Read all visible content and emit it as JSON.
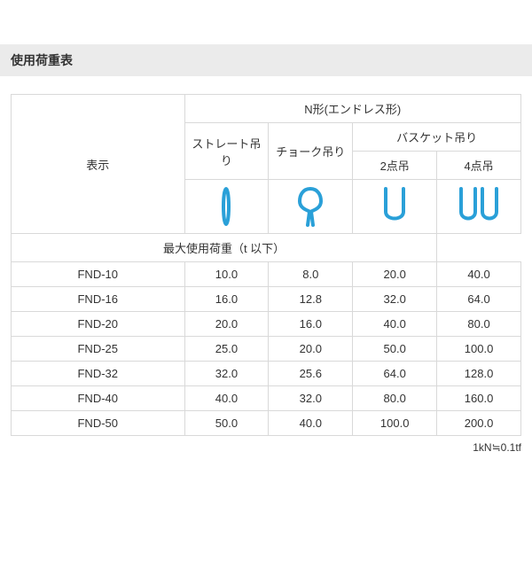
{
  "title": "使用荷重表",
  "header": {
    "shape_group": "N形(エンドレス形)",
    "display_label": "表示",
    "col_straight": "ストレート吊り",
    "col_choke": "チョーク吊り",
    "col_basket_group": "バスケット吊り",
    "col_basket_2": "2点吊",
    "col_basket_4": "4点吊",
    "max_load_label": "最大使用荷重（t 以下）"
  },
  "icon_color": "#2aa0d8",
  "icon_stroke_width": 4,
  "rows": [
    {
      "name": "FND-10",
      "straight": "10.0",
      "choke": "8.0",
      "b2": "20.0",
      "b4": "40.0"
    },
    {
      "name": "FND-16",
      "straight": "16.0",
      "choke": "12.8",
      "b2": "32.0",
      "b4": "64.0"
    },
    {
      "name": "FND-20",
      "straight": "20.0",
      "choke": "16.0",
      "b2": "40.0",
      "b4": "80.0"
    },
    {
      "name": "FND-25",
      "straight": "25.0",
      "choke": "20.0",
      "b2": "50.0",
      "b4": "100.0"
    },
    {
      "name": "FND-32",
      "straight": "32.0",
      "choke": "25.6",
      "b2": "64.0",
      "b4": "128.0"
    },
    {
      "name": "FND-40",
      "straight": "40.0",
      "choke": "32.0",
      "b2": "80.0",
      "b4": "160.0"
    },
    {
      "name": "FND-50",
      "straight": "50.0",
      "choke": "40.0",
      "b2": "100.0",
      "b4": "200.0"
    }
  ],
  "footnote": "1kN≒0.1tf"
}
